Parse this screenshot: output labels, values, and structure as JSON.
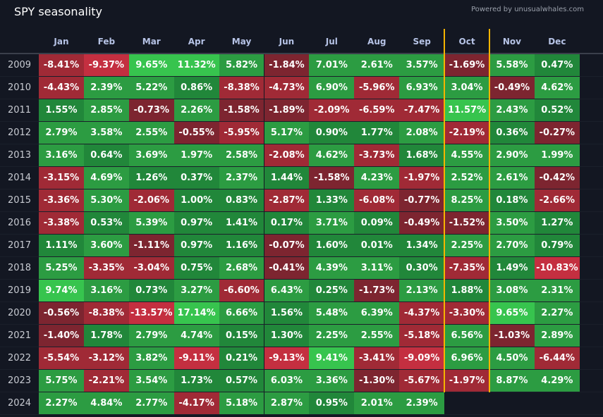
{
  "header": {
    "title": "SPY seasonality",
    "powered_by": "Powered by unusualwhales.com"
  },
  "chart_data": {
    "type": "heatmap",
    "title": "SPY seasonality",
    "columns": [
      "Jan",
      "Feb",
      "Mar",
      "Apr",
      "May",
      "Jun",
      "Jul",
      "Aug",
      "Sep",
      "Oct",
      "Nov",
      "Dec"
    ],
    "highlight_column": "Oct",
    "rows": [
      {
        "year": "2009",
        "values": [
          "-8.41%",
          "-9.37%",
          "9.65%",
          "11.32%",
          "5.82%",
          "-1.84%",
          "7.01%",
          "2.61%",
          "3.57%",
          "-1.69%",
          "5.58%",
          "0.47%"
        ]
      },
      {
        "year": "2010",
        "values": [
          "-4.43%",
          "2.39%",
          "5.22%",
          "0.86%",
          "-8.38%",
          "-4.73%",
          "6.90%",
          "-5.96%",
          "6.93%",
          "3.04%",
          "-0.49%",
          "4.62%"
        ]
      },
      {
        "year": "2011",
        "values": [
          "1.55%",
          "2.85%",
          "-0.73%",
          "2.26%",
          "-1.58%",
          "-1.89%",
          "-2.09%",
          "-6.59%",
          "-7.47%",
          "11.57%",
          "2.43%",
          "0.52%"
        ]
      },
      {
        "year": "2012",
        "values": [
          "2.79%",
          "3.58%",
          "2.55%",
          "-0.55%",
          "-5.95%",
          "5.17%",
          "0.90%",
          "1.77%",
          "2.08%",
          "-2.19%",
          "0.36%",
          "-0.27%"
        ]
      },
      {
        "year": "2013",
        "values": [
          "3.16%",
          "0.64%",
          "3.69%",
          "1.97%",
          "2.58%",
          "-2.08%",
          "4.62%",
          "-3.73%",
          "1.68%",
          "4.55%",
          "2.90%",
          "1.99%"
        ]
      },
      {
        "year": "2014",
        "values": [
          "-3.15%",
          "4.69%",
          "1.26%",
          "0.37%",
          "2.37%",
          "1.44%",
          "-1.58%",
          "4.23%",
          "-1.97%",
          "2.52%",
          "2.61%",
          "-0.42%"
        ]
      },
      {
        "year": "2015",
        "values": [
          "-3.36%",
          "5.30%",
          "-2.06%",
          "1.00%",
          "0.83%",
          "-2.87%",
          "1.33%",
          "-6.08%",
          "-0.77%",
          "8.25%",
          "0.18%",
          "-2.66%"
        ]
      },
      {
        "year": "2016",
        "values": [
          "-3.38%",
          "0.53%",
          "5.39%",
          "0.97%",
          "1.41%",
          "0.17%",
          "3.71%",
          "0.09%",
          "-0.49%",
          "-1.52%",
          "3.50%",
          "1.27%"
        ]
      },
      {
        "year": "2017",
        "values": [
          "1.11%",
          "3.60%",
          "-1.11%",
          "0.97%",
          "1.16%",
          "-0.07%",
          "1.60%",
          "0.01%",
          "1.34%",
          "2.25%",
          "2.70%",
          "0.79%"
        ]
      },
      {
        "year": "2018",
        "values": [
          "5.25%",
          "-3.35%",
          "-3.04%",
          "0.75%",
          "2.68%",
          "-0.41%",
          "4.39%",
          "3.11%",
          "0.30%",
          "-7.35%",
          "1.49%",
          "-10.83%"
        ]
      },
      {
        "year": "2019",
        "values": [
          "9.74%",
          "3.16%",
          "0.73%",
          "3.27%",
          "-6.60%",
          "6.43%",
          "0.25%",
          "-1.73%",
          "2.13%",
          "1.88%",
          "3.08%",
          "2.31%"
        ]
      },
      {
        "year": "2020",
        "values": [
          "-0.56%",
          "-8.38%",
          "-13.57%",
          "17.14%",
          "6.66%",
          "1.56%",
          "5.48%",
          "6.39%",
          "-4.37%",
          "-3.30%",
          "9.65%",
          "2.27%"
        ]
      },
      {
        "year": "2021",
        "values": [
          "-1.40%",
          "1.78%",
          "2.79%",
          "4.74%",
          "0.15%",
          "1.30%",
          "2.25%",
          "2.55%",
          "-5.18%",
          "6.56%",
          "-1.03%",
          "2.89%"
        ]
      },
      {
        "year": "2022",
        "values": [
          "-5.54%",
          "-3.12%",
          "3.82%",
          "-9.11%",
          "0.21%",
          "-9.13%",
          "9.41%",
          "-3.41%",
          "-9.09%",
          "6.96%",
          "4.50%",
          "-6.44%"
        ]
      },
      {
        "year": "2023",
        "values": [
          "5.75%",
          "-2.21%",
          "3.54%",
          "1.73%",
          "0.57%",
          "6.03%",
          "3.36%",
          "-1.30%",
          "-5.67%",
          "-1.97%",
          "8.87%",
          "4.29%"
        ]
      },
      {
        "year": "2024",
        "values": [
          "2.27%",
          "4.84%",
          "2.77%",
          "-4.17%",
          "5.18%",
          "2.87%",
          "0.95%",
          "2.01%",
          "2.39%",
          "",
          "",
          ""
        ]
      }
    ]
  },
  "colors": {
    "strong_pos": "#37c44e",
    "pos": "#2c9c42",
    "weak_pos": "#21873a",
    "strong_neg": "#c42f40",
    "neg": "#a02a36",
    "weak_neg": "#7d2530",
    "oct_line": "#f5b400"
  }
}
